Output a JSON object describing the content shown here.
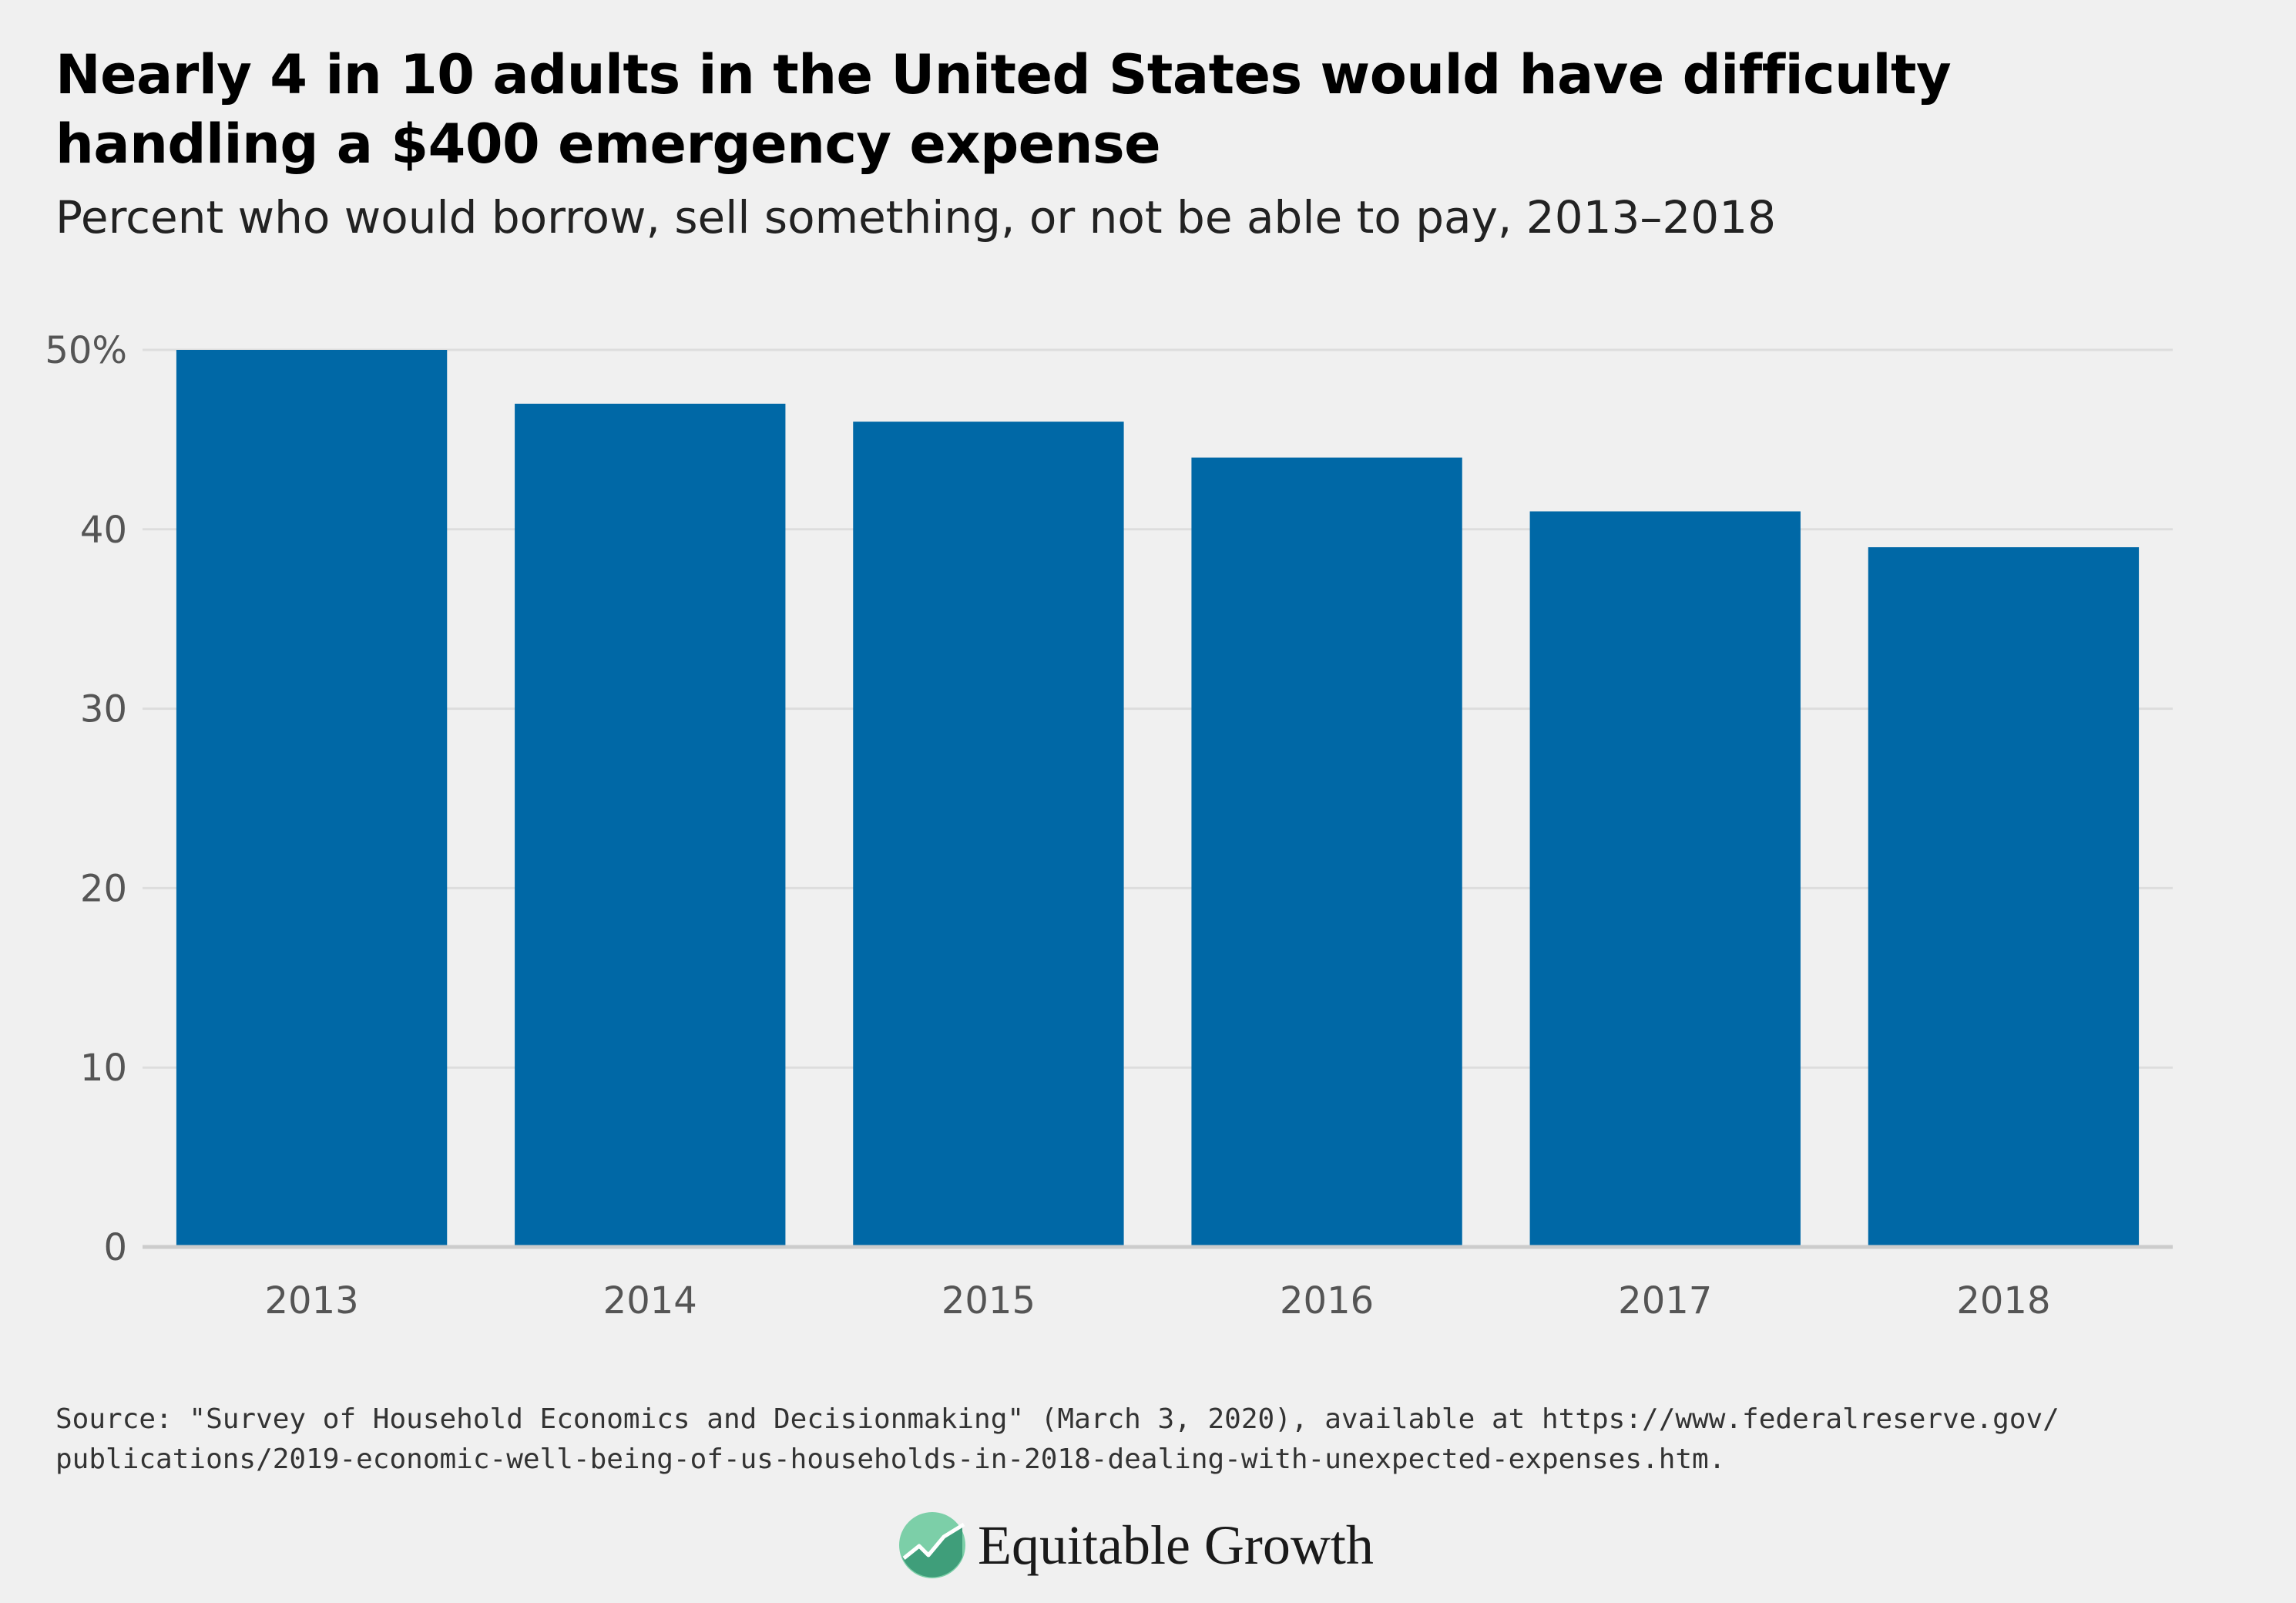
{
  "header": {
    "title": "Nearly 4 in 10 adults in the United States would have difficulty handling a $400 emergency expense",
    "subtitle": "Percent who would borrow, sell something, or not be able to pay, 2013–2018"
  },
  "footer": {
    "source_line1": "Source: \"Survey of Household Economics and Decisionmaking\" (March 3, 2020), available at https://www.federalreserve.gov/",
    "source_line2": "publications/2019-economic-well-being-of-us-households-in-2018-dealing-with-unexpected-expenses.htm.",
    "logo_text": "Equitable Growth",
    "logo_icon": "rising-line-chart-icon"
  },
  "chart_data": {
    "type": "bar",
    "title": "Nearly 4 in 10 adults in the United States would have difficulty handling a $400 emergency expense",
    "subtitle": "Percent who would borrow, sell something, or not be able to pay, 2013–2018",
    "categories": [
      "2013",
      "2014",
      "2015",
      "2016",
      "2017",
      "2018"
    ],
    "values": [
      50,
      47,
      46,
      44,
      41,
      39
    ],
    "ylim": [
      0,
      50
    ],
    "yticks": [
      0,
      10,
      20,
      30,
      40,
      50
    ],
    "ytick_labels": [
      "0",
      "10",
      "20",
      "30",
      "40",
      "50%"
    ],
    "xlabel": "",
    "ylabel": "",
    "grid": true,
    "bar_color": "#0068a6",
    "grid_color": "#dddddd"
  }
}
